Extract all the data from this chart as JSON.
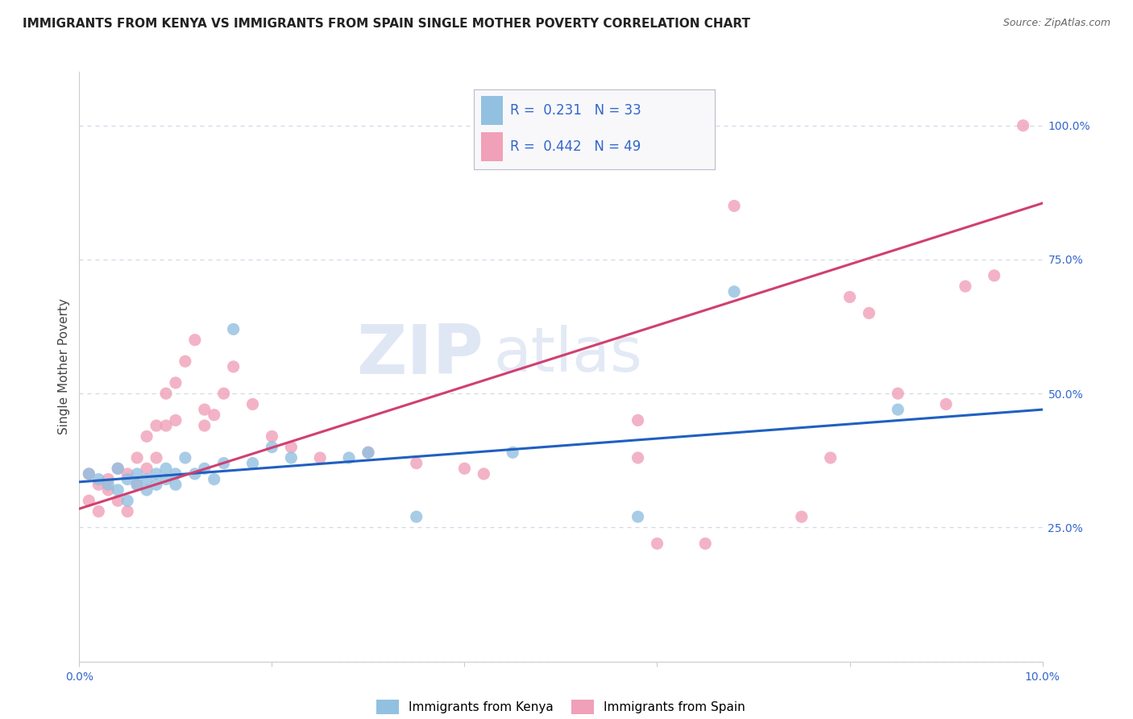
{
  "title": "IMMIGRANTS FROM KENYA VS IMMIGRANTS FROM SPAIN SINGLE MOTHER POVERTY CORRELATION CHART",
  "source": "Source: ZipAtlas.com",
  "ylabel": "Single Mother Poverty",
  "x_min": 0.0,
  "x_max": 0.1,
  "y_min": 0.0,
  "y_max": 1.1,
  "y_ticks_right": [
    0.0,
    0.25,
    0.5,
    0.75,
    1.0
  ],
  "y_tick_labels_right": [
    "",
    "25.0%",
    "50.0%",
    "75.0%",
    "100.0%"
  ],
  "kenya_R": 0.231,
  "kenya_N": 33,
  "spain_R": 0.442,
  "spain_N": 49,
  "kenya_color": "#92c0e0",
  "kenya_line_color": "#2060c0",
  "spain_color": "#f0a0b8",
  "spain_line_color": "#d04070",
  "watermark_zip": "ZIP",
  "watermark_atlas": "atlas",
  "background_color": "#ffffff",
  "grid_color": "#d0d8e8",
  "kenya_scatter_x": [
    0.001,
    0.002,
    0.003,
    0.004,
    0.004,
    0.005,
    0.005,
    0.006,
    0.006,
    0.007,
    0.007,
    0.008,
    0.008,
    0.009,
    0.009,
    0.01,
    0.01,
    0.011,
    0.012,
    0.013,
    0.014,
    0.015,
    0.016,
    0.018,
    0.02,
    0.022,
    0.028,
    0.03,
    0.035,
    0.045,
    0.058,
    0.068,
    0.085
  ],
  "kenya_scatter_y": [
    0.35,
    0.34,
    0.33,
    0.36,
    0.32,
    0.34,
    0.3,
    0.35,
    0.33,
    0.34,
    0.32,
    0.35,
    0.33,
    0.36,
    0.34,
    0.35,
    0.33,
    0.38,
    0.35,
    0.36,
    0.34,
    0.37,
    0.62,
    0.37,
    0.4,
    0.38,
    0.38,
    0.39,
    0.27,
    0.39,
    0.27,
    0.69,
    0.47
  ],
  "spain_scatter_x": [
    0.001,
    0.001,
    0.002,
    0.002,
    0.003,
    0.003,
    0.004,
    0.004,
    0.005,
    0.005,
    0.006,
    0.006,
    0.007,
    0.007,
    0.008,
    0.008,
    0.009,
    0.009,
    0.01,
    0.01,
    0.011,
    0.012,
    0.013,
    0.013,
    0.014,
    0.015,
    0.016,
    0.018,
    0.02,
    0.022,
    0.025,
    0.03,
    0.035,
    0.04,
    0.042,
    0.058,
    0.058,
    0.06,
    0.065,
    0.068,
    0.075,
    0.078,
    0.08,
    0.082,
    0.085,
    0.09,
    0.092,
    0.095,
    0.098
  ],
  "spain_scatter_y": [
    0.35,
    0.3,
    0.33,
    0.28,
    0.34,
    0.32,
    0.36,
    0.3,
    0.35,
    0.28,
    0.38,
    0.33,
    0.42,
    0.36,
    0.44,
    0.38,
    0.5,
    0.44,
    0.52,
    0.45,
    0.56,
    0.6,
    0.47,
    0.44,
    0.46,
    0.5,
    0.55,
    0.48,
    0.42,
    0.4,
    0.38,
    0.39,
    0.37,
    0.36,
    0.35,
    0.38,
    0.45,
    0.22,
    0.22,
    0.85,
    0.27,
    0.38,
    0.68,
    0.65,
    0.5,
    0.48,
    0.7,
    0.72,
    1.0
  ],
  "kenya_trend_x": [
    0.0,
    0.1
  ],
  "kenya_trend_y": [
    0.335,
    0.47
  ],
  "spain_trend_x": [
    0.0,
    0.1
  ],
  "spain_trend_y": [
    0.285,
    0.855
  ],
  "title_fontsize": 11,
  "axis_label_fontsize": 11,
  "tick_fontsize": 10,
  "legend_fontsize": 11,
  "stats_fontsize": 12
}
